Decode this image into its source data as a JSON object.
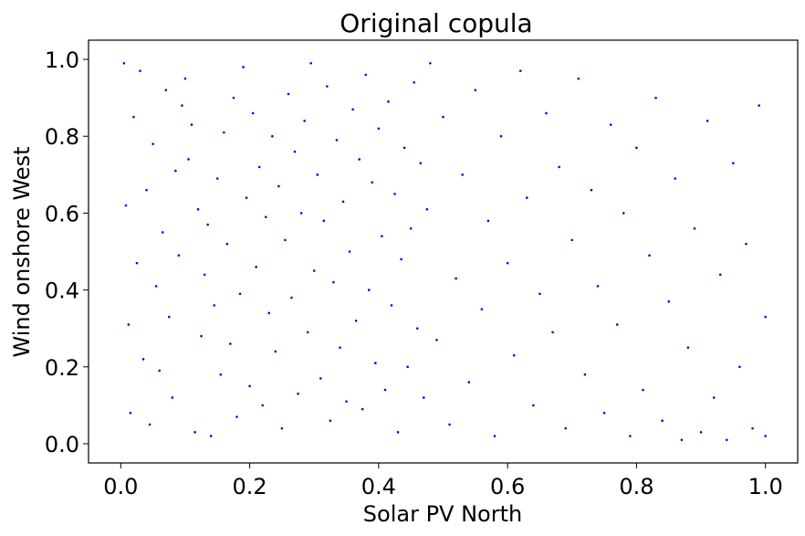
{
  "chart_data": {
    "type": "scatter",
    "title": "Original copula",
    "xlabel": "Solar PV North",
    "ylabel": "Wind onshore West",
    "xlim": [
      -0.05,
      1.05
    ],
    "ylim": [
      -0.05,
      1.05
    ],
    "xticks": [
      0.0,
      0.2,
      0.4,
      0.6,
      0.8,
      1.0
    ],
    "xtick_labels": [
      "0.0",
      "0.2",
      "0.4",
      "0.6",
      "0.8",
      "1.0"
    ],
    "yticks": [
      0.0,
      0.2,
      0.4,
      0.6,
      0.8,
      1.0
    ],
    "ytick_labels": [
      "0.0",
      "0.2",
      "0.4",
      "0.6",
      "0.8",
      "1.0"
    ],
    "grid": false,
    "marker_color": "#0000ff",
    "series": [
      {
        "points": [
          [
            0.005,
            0.99
          ],
          [
            0.008,
            0.62
          ],
          [
            0.012,
            0.31
          ],
          [
            0.015,
            0.08
          ],
          [
            0.02,
            0.85
          ],
          [
            0.025,
            0.47
          ],
          [
            0.03,
            0.97
          ],
          [
            0.035,
            0.22
          ],
          [
            0.04,
            0.66
          ],
          [
            0.045,
            0.05
          ],
          [
            0.05,
            0.78
          ],
          [
            0.055,
            0.41
          ],
          [
            0.06,
            0.19
          ],
          [
            0.065,
            0.55
          ],
          [
            0.07,
            0.92
          ],
          [
            0.075,
            0.33
          ],
          [
            0.08,
            0.12
          ],
          [
            0.085,
            0.71
          ],
          [
            0.09,
            0.49
          ],
          [
            0.095,
            0.88
          ],
          [
            0.1,
            0.95
          ],
          [
            0.105,
            0.74
          ],
          [
            0.11,
            0.83
          ],
          [
            0.115,
            0.03
          ],
          [
            0.12,
            0.61
          ],
          [
            0.125,
            0.28
          ],
          [
            0.13,
            0.44
          ],
          [
            0.135,
            0.57
          ],
          [
            0.14,
            0.02
          ],
          [
            0.145,
            0.36
          ],
          [
            0.15,
            0.69
          ],
          [
            0.155,
            0.18
          ],
          [
            0.16,
            0.81
          ],
          [
            0.165,
            0.52
          ],
          [
            0.17,
            0.26
          ],
          [
            0.175,
            0.9
          ],
          [
            0.18,
            0.07
          ],
          [
            0.185,
            0.39
          ],
          [
            0.19,
            0.98
          ],
          [
            0.195,
            0.64
          ],
          [
            0.2,
            0.15
          ],
          [
            0.205,
            0.86
          ],
          [
            0.21,
            0.46
          ],
          [
            0.215,
            0.72
          ],
          [
            0.22,
            0.1
          ],
          [
            0.225,
            0.59
          ],
          [
            0.23,
            0.34
          ],
          [
            0.235,
            0.8
          ],
          [
            0.24,
            0.24
          ],
          [
            0.245,
            0.67
          ],
          [
            0.25,
            0.04
          ],
          [
            0.255,
            0.53
          ],
          [
            0.26,
            0.91
          ],
          [
            0.265,
            0.38
          ],
          [
            0.27,
            0.76
          ],
          [
            0.275,
            0.13
          ],
          [
            0.28,
            0.6
          ],
          [
            0.285,
            0.84
          ],
          [
            0.29,
            0.29
          ],
          [
            0.295,
            0.99
          ],
          [
            0.3,
            0.45
          ],
          [
            0.305,
            0.7
          ],
          [
            0.31,
            0.17
          ],
          [
            0.315,
            0.58
          ],
          [
            0.32,
            0.93
          ],
          [
            0.325,
            0.06
          ],
          [
            0.33,
            0.42
          ],
          [
            0.335,
            0.79
          ],
          [
            0.34,
            0.25
          ],
          [
            0.345,
            0.63
          ],
          [
            0.35,
            0.11
          ],
          [
            0.355,
            0.5
          ],
          [
            0.36,
            0.87
          ],
          [
            0.365,
            0.32
          ],
          [
            0.37,
            0.74
          ],
          [
            0.375,
            0.09
          ],
          [
            0.38,
            0.96
          ],
          [
            0.385,
            0.4
          ],
          [
            0.39,
            0.68
          ],
          [
            0.395,
            0.21
          ],
          [
            0.4,
            0.82
          ],
          [
            0.405,
            0.54
          ],
          [
            0.41,
            0.14
          ],
          [
            0.415,
            0.89
          ],
          [
            0.42,
            0.36
          ],
          [
            0.425,
            0.65
          ],
          [
            0.43,
            0.03
          ],
          [
            0.435,
            0.48
          ],
          [
            0.44,
            0.77
          ],
          [
            0.445,
            0.2
          ],
          [
            0.45,
            0.56
          ],
          [
            0.455,
            0.94
          ],
          [
            0.46,
            0.3
          ],
          [
            0.465,
            0.73
          ],
          [
            0.47,
            0.12
          ],
          [
            0.475,
            0.61
          ],
          [
            0.48,
            0.99
          ],
          [
            0.49,
            0.27
          ],
          [
            0.5,
            0.85
          ],
          [
            0.51,
            0.05
          ],
          [
            0.52,
            0.43
          ],
          [
            0.53,
            0.7
          ],
          [
            0.54,
            0.16
          ],
          [
            0.55,
            0.92
          ],
          [
            0.56,
            0.35
          ],
          [
            0.57,
            0.58
          ],
          [
            0.58,
            0.02
          ],
          [
            0.59,
            0.8
          ],
          [
            0.6,
            0.47
          ],
          [
            0.61,
            0.23
          ],
          [
            0.62,
            0.97
          ],
          [
            0.63,
            0.64
          ],
          [
            0.64,
            0.1
          ],
          [
            0.65,
            0.39
          ],
          [
            0.66,
            0.86
          ],
          [
            0.67,
            0.29
          ],
          [
            0.68,
            0.72
          ],
          [
            0.69,
            0.04
          ],
          [
            0.7,
            0.53
          ],
          [
            0.71,
            0.95
          ],
          [
            0.72,
            0.18
          ],
          [
            0.73,
            0.66
          ],
          [
            0.74,
            0.41
          ],
          [
            0.75,
            0.08
          ],
          [
            0.76,
            0.83
          ],
          [
            0.77,
            0.31
          ],
          [
            0.78,
            0.6
          ],
          [
            0.79,
            0.02
          ],
          [
            0.8,
            0.77
          ],
          [
            0.81,
            0.14
          ],
          [
            0.82,
            0.49
          ],
          [
            0.83,
            0.9
          ],
          [
            0.84,
            0.06
          ],
          [
            0.85,
            0.37
          ],
          [
            0.86,
            0.69
          ],
          [
            0.87,
            0.01
          ],
          [
            0.88,
            0.25
          ],
          [
            0.89,
            0.56
          ],
          [
            0.9,
            0.03
          ],
          [
            0.91,
            0.84
          ],
          [
            0.92,
            0.12
          ],
          [
            0.93,
            0.44
          ],
          [
            0.94,
            0.01
          ],
          [
            0.95,
            0.73
          ],
          [
            0.96,
            0.2
          ],
          [
            0.97,
            0.52
          ],
          [
            0.98,
            0.04
          ],
          [
            0.99,
            0.88
          ],
          [
            1.0,
            0.33
          ],
          [
            1.0,
            0.02
          ]
        ]
      }
    ]
  }
}
